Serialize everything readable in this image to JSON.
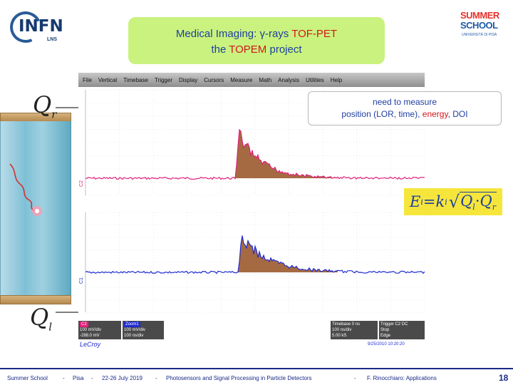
{
  "logos": {
    "infn_name": "INFN",
    "infn_sub": "LNS",
    "school_line1": "SUMMER",
    "school_line2": "SCHOOL",
    "school_line3": "UNIVERSITÀ DI PISA"
  },
  "title": {
    "line1_part1": "Medical Imaging: ",
    "gamma": "γ",
    "line1_part2": "-rays ",
    "line1_red": "TOF-PET",
    "line2_part1": "the ",
    "line2_red": "TOPEM",
    "line2_part2": " project"
  },
  "crystal": {
    "q_top_main": "Q",
    "q_top_sub": "r",
    "q_bot_main": "Q",
    "q_bot_sub": "l"
  },
  "scope": {
    "menu": [
      "File",
      "Vertical",
      "Timebase",
      "Trigger",
      "Display",
      "Cursors",
      "Measure",
      "Math",
      "Analysis",
      "Utilities",
      "Help"
    ],
    "channel_top_label": "C2",
    "channel_bottom_label": "C1",
    "brand": "LeCroy",
    "ch_top": {
      "name": "C2",
      "scale": "100 mV/div",
      "offset": "-288.0 mV"
    },
    "ch_bottom": {
      "name": "Zoom1",
      "scale": "100 mV/div",
      "offset": "100 ns/div"
    },
    "timebase": {
      "label": "Timebase",
      "value": "0 ns",
      "line2": "100 ns/div",
      "line3": "5.00 kS"
    },
    "trigger": {
      "label": "Trigger",
      "value": "C2 DC",
      "line2": "Stop",
      "line3": "Edge"
    },
    "timestamp": "9/25/2010 10:20:20",
    "colors": {
      "top_trace": "#e0207a",
      "bottom_trace": "#1f2bd0",
      "fill": "#9c5a2f"
    }
  },
  "callout": {
    "line1": "need to measure",
    "line2_part1": "position (LOR, time), ",
    "line2_red": "energy",
    "line2_part2": ", DOI"
  },
  "formula": {
    "E": "E",
    "i": "i",
    "eq": " = ",
    "k": "k",
    "ki": "i",
    "Q1": "Q",
    "Q1sub": "l",
    "dot": "·",
    "Q2": "Q",
    "Q2sub": "r"
  },
  "footer": {
    "school": "Summer School",
    "sep1": "-",
    "place": "Pisa",
    "sep2": "-",
    "dates": "22-26 July 2019",
    "sep3": "-",
    "topic": "Photosensors and Signal Processing in Particle Detectors",
    "sep4": "-",
    "author": "F. Rinocchiaro: Applications",
    "page": "18"
  }
}
